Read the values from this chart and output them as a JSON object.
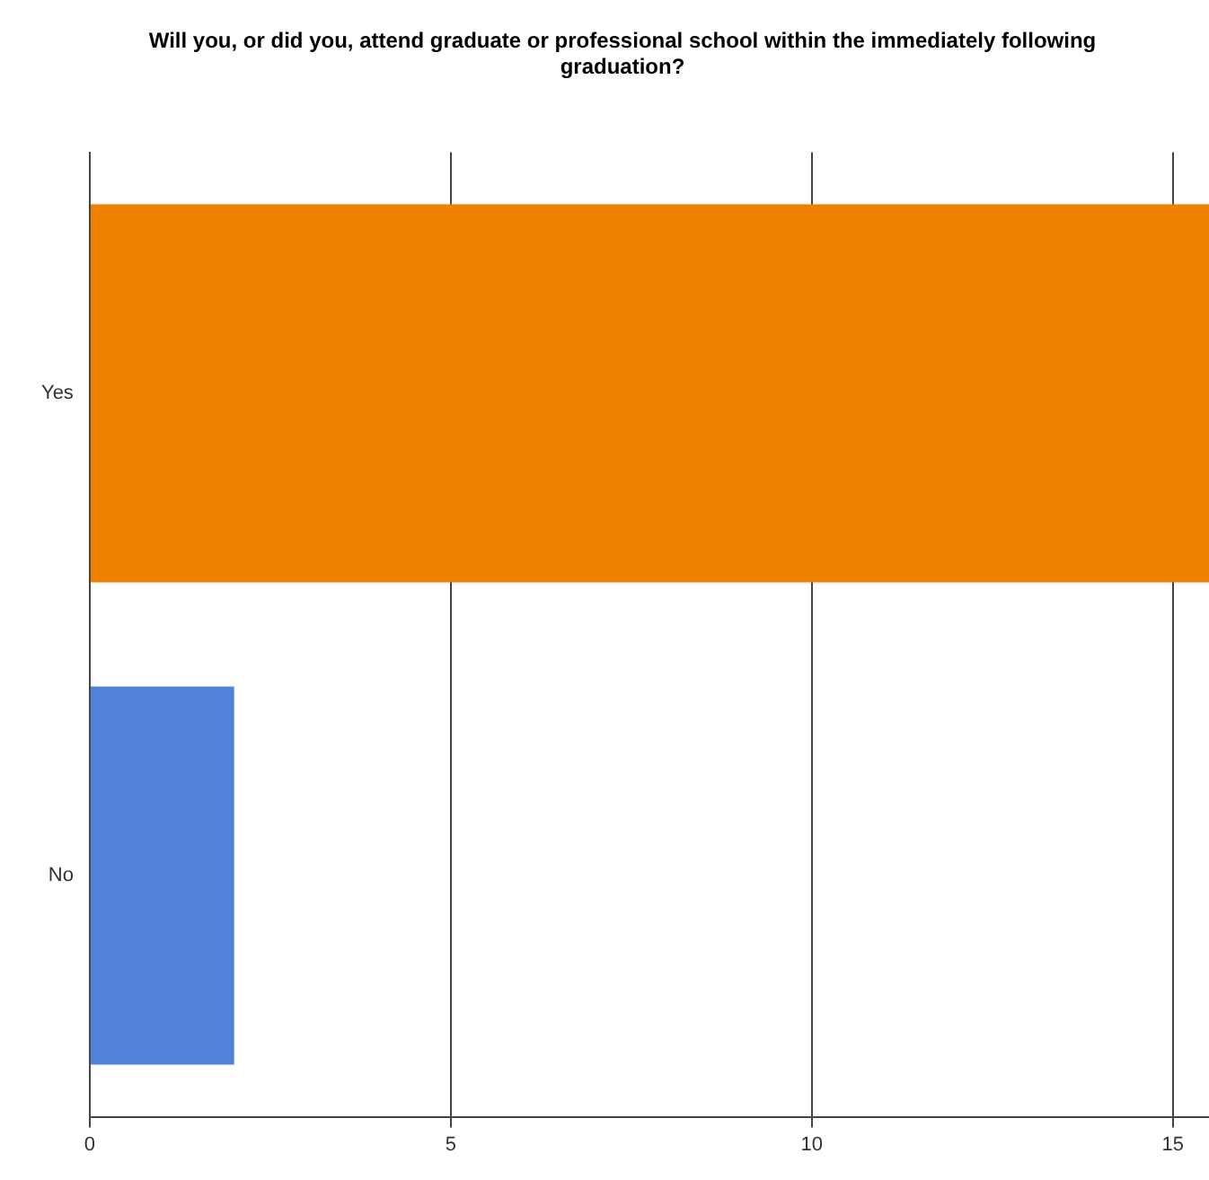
{
  "chart_data": {
    "type": "bar",
    "orientation": "horizontal",
    "title": "Will you, or did you, attend graduate or professional school within the immediately following graduation?",
    "categories": [
      "Yes",
      "No"
    ],
    "values": [
      15.5,
      2
    ],
    "colors": [
      "#f08000",
      "#4f82d8"
    ],
    "xlim": [
      0,
      15.5
    ],
    "xticks": [
      0,
      5,
      10,
      15
    ],
    "grid": "x",
    "legend": false
  }
}
